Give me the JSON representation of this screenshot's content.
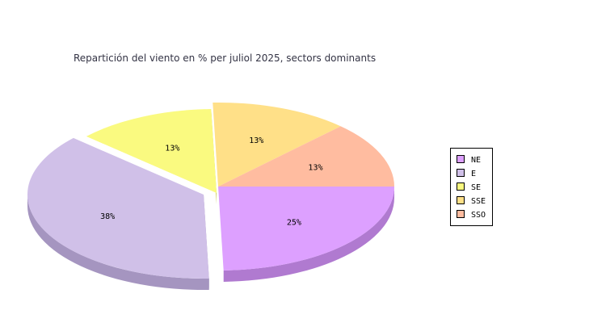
{
  "chart_data": {
    "type": "pie",
    "title": "Repartición del viento en % per juliol 2025, sectors dominants",
    "categories": [
      "NE",
      "E",
      "SE",
      "SSE",
      "SSO"
    ],
    "values": [
      25,
      38,
      13,
      13,
      13
    ],
    "labels": [
      "25%",
      "38%",
      "13%",
      "13%",
      "13%"
    ],
    "colors": [
      "#dda0ff",
      "#d0c0e8",
      "#fafa80",
      "#ffe088",
      "#ffbca0"
    ],
    "side_colors": [
      "#b07ad0",
      "#a595c0",
      "#cccc50",
      "#d9b860",
      "#d99878"
    ],
    "exploded": [
      "E",
      "SE"
    ],
    "legend": {
      "placement": "right",
      "items": [
        "NE",
        "E",
        "SE",
        "SSE",
        "SSO"
      ]
    }
  }
}
